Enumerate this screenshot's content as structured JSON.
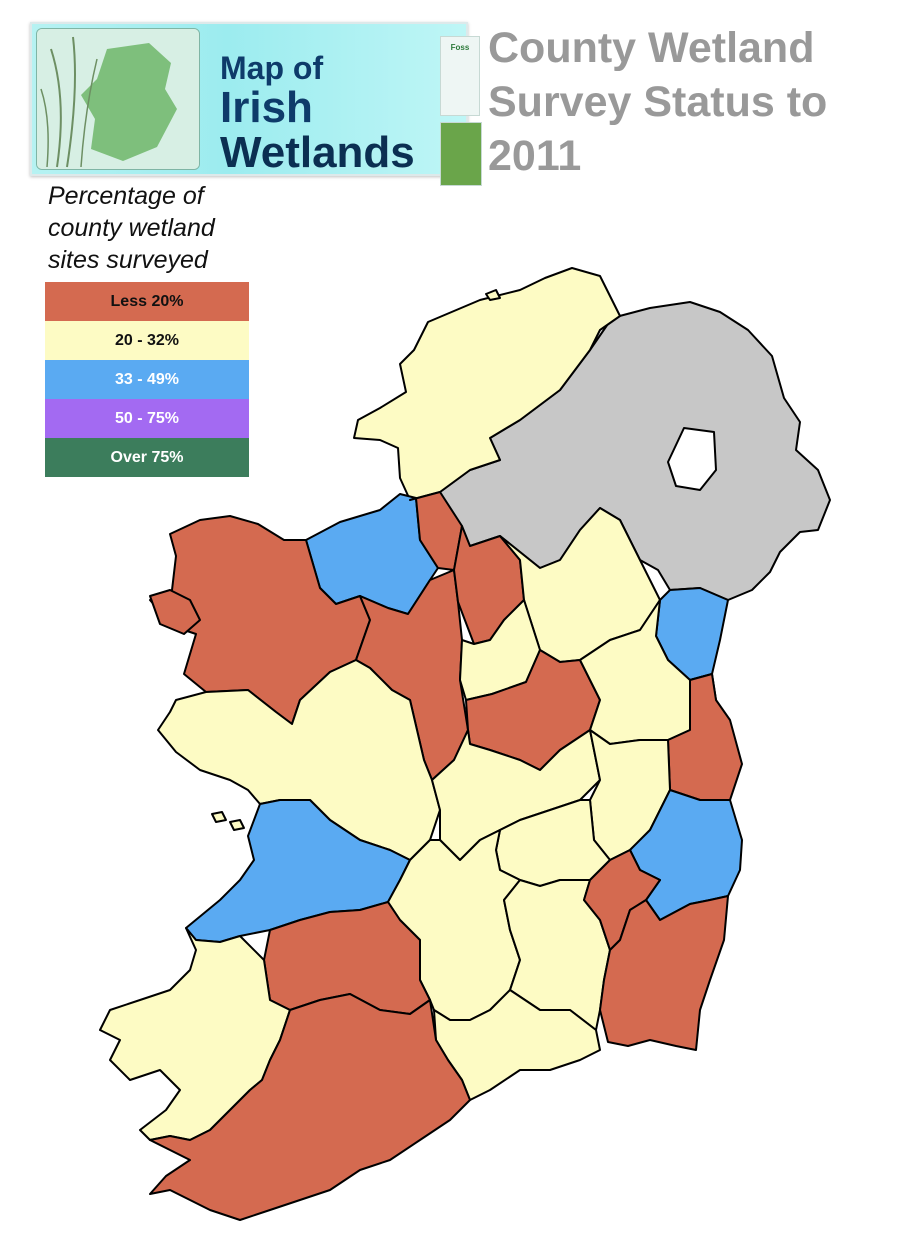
{
  "banner": {
    "brand_lines": [
      "Map of",
      "Irish",
      "Wetlands"
    ],
    "sponsor_logo": "Foss"
  },
  "title_lines": [
    "County Wetland",
    "Survey Status to",
    "2011"
  ],
  "legend": {
    "title_lines": [
      "Percentage of",
      "county wetland",
      "sites surveyed"
    ],
    "items": [
      {
        "label": "Less 20%",
        "color": "#d46a50",
        "text_color": "#111111"
      },
      {
        "label": "20 - 32%",
        "color": "#fdfbc4",
        "text_color": "#111111"
      },
      {
        "label": "33 - 49%",
        "color": "#5aaaf2",
        "text_color": "#ffffff"
      },
      {
        "label": "50 - 75%",
        "color": "#a36af2",
        "text_color": "#ffffff"
      },
      {
        "label": "Over 75%",
        "color": "#3c7d5c",
        "text_color": "#ffffff"
      }
    ]
  },
  "map": {
    "colors": {
      "lt20": "#d46a50",
      "r20_32": "#fdfbc4",
      "r33_49": "#5aaaf2",
      "not_surveyed": "#c7c7c7",
      "lake": "#ffffff"
    }
  }
}
